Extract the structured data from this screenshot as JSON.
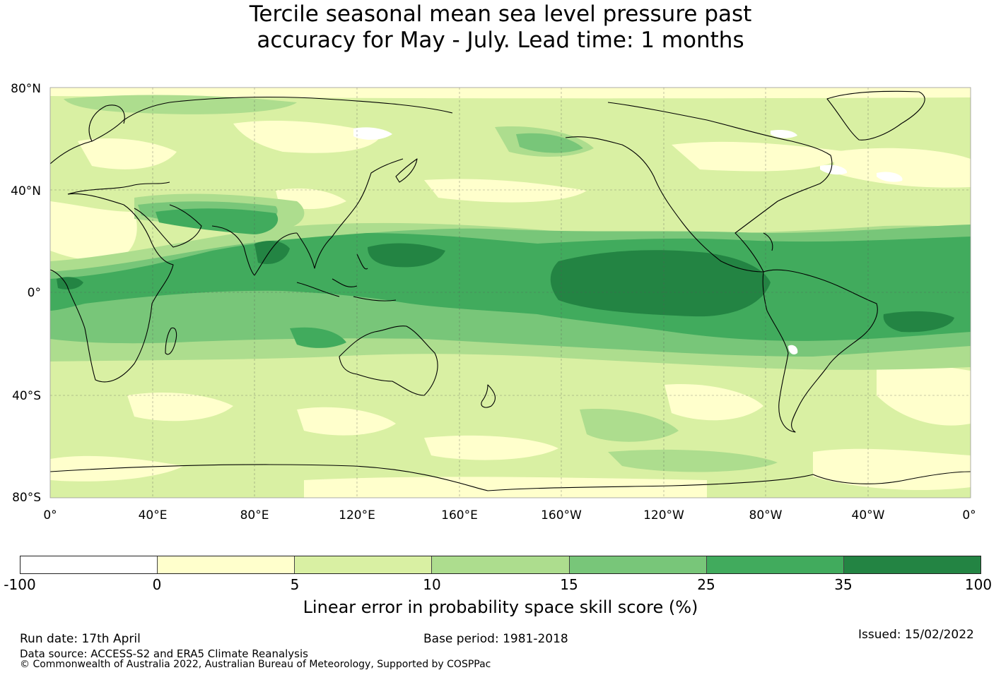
{
  "title": {
    "line1": "Tercile seasonal mean sea level pressure past",
    "line2": "accuracy for May - July. Lead time: 1 months"
  },
  "map": {
    "lat_labels": [
      "80°N",
      "40°N",
      "0°",
      "40°S",
      "80°S"
    ],
    "lon_labels": [
      "0°",
      "40°E",
      "80°E",
      "120°E",
      "160°E",
      "160°W",
      "120°W",
      "80°W",
      "40°W",
      "0°"
    ],
    "palette": {
      "negative": "#ffffff",
      "0_5": "#ffffcc",
      "5_10": "#d9f0a3",
      "10_15": "#addd8e",
      "15_25": "#78c679",
      "25_35": "#41ab5d",
      "35_100": "#238443",
      "coast": "#000000"
    }
  },
  "colorbar": {
    "colors": [
      "#ffffff",
      "#ffffcc",
      "#d9f0a3",
      "#addd8e",
      "#78c679",
      "#41ab5d",
      "#238443"
    ],
    "ticks": [
      "-100",
      "0",
      "5",
      "10",
      "15",
      "25",
      "35",
      "100"
    ],
    "label": "Linear error in probability space skill score (%)"
  },
  "footer": {
    "run_date": "Run date: 17th April",
    "base_period": "Base period: 1981-2018",
    "issued": "Issued: 15/02/2022",
    "data_source": "Data source: ACCESS-S2 and ERA5 Climate Reanalysis",
    "copyright": "© Commonwealth of Australia 2022, Australian Bureau of Meteorology, Supported by COSPPac"
  }
}
